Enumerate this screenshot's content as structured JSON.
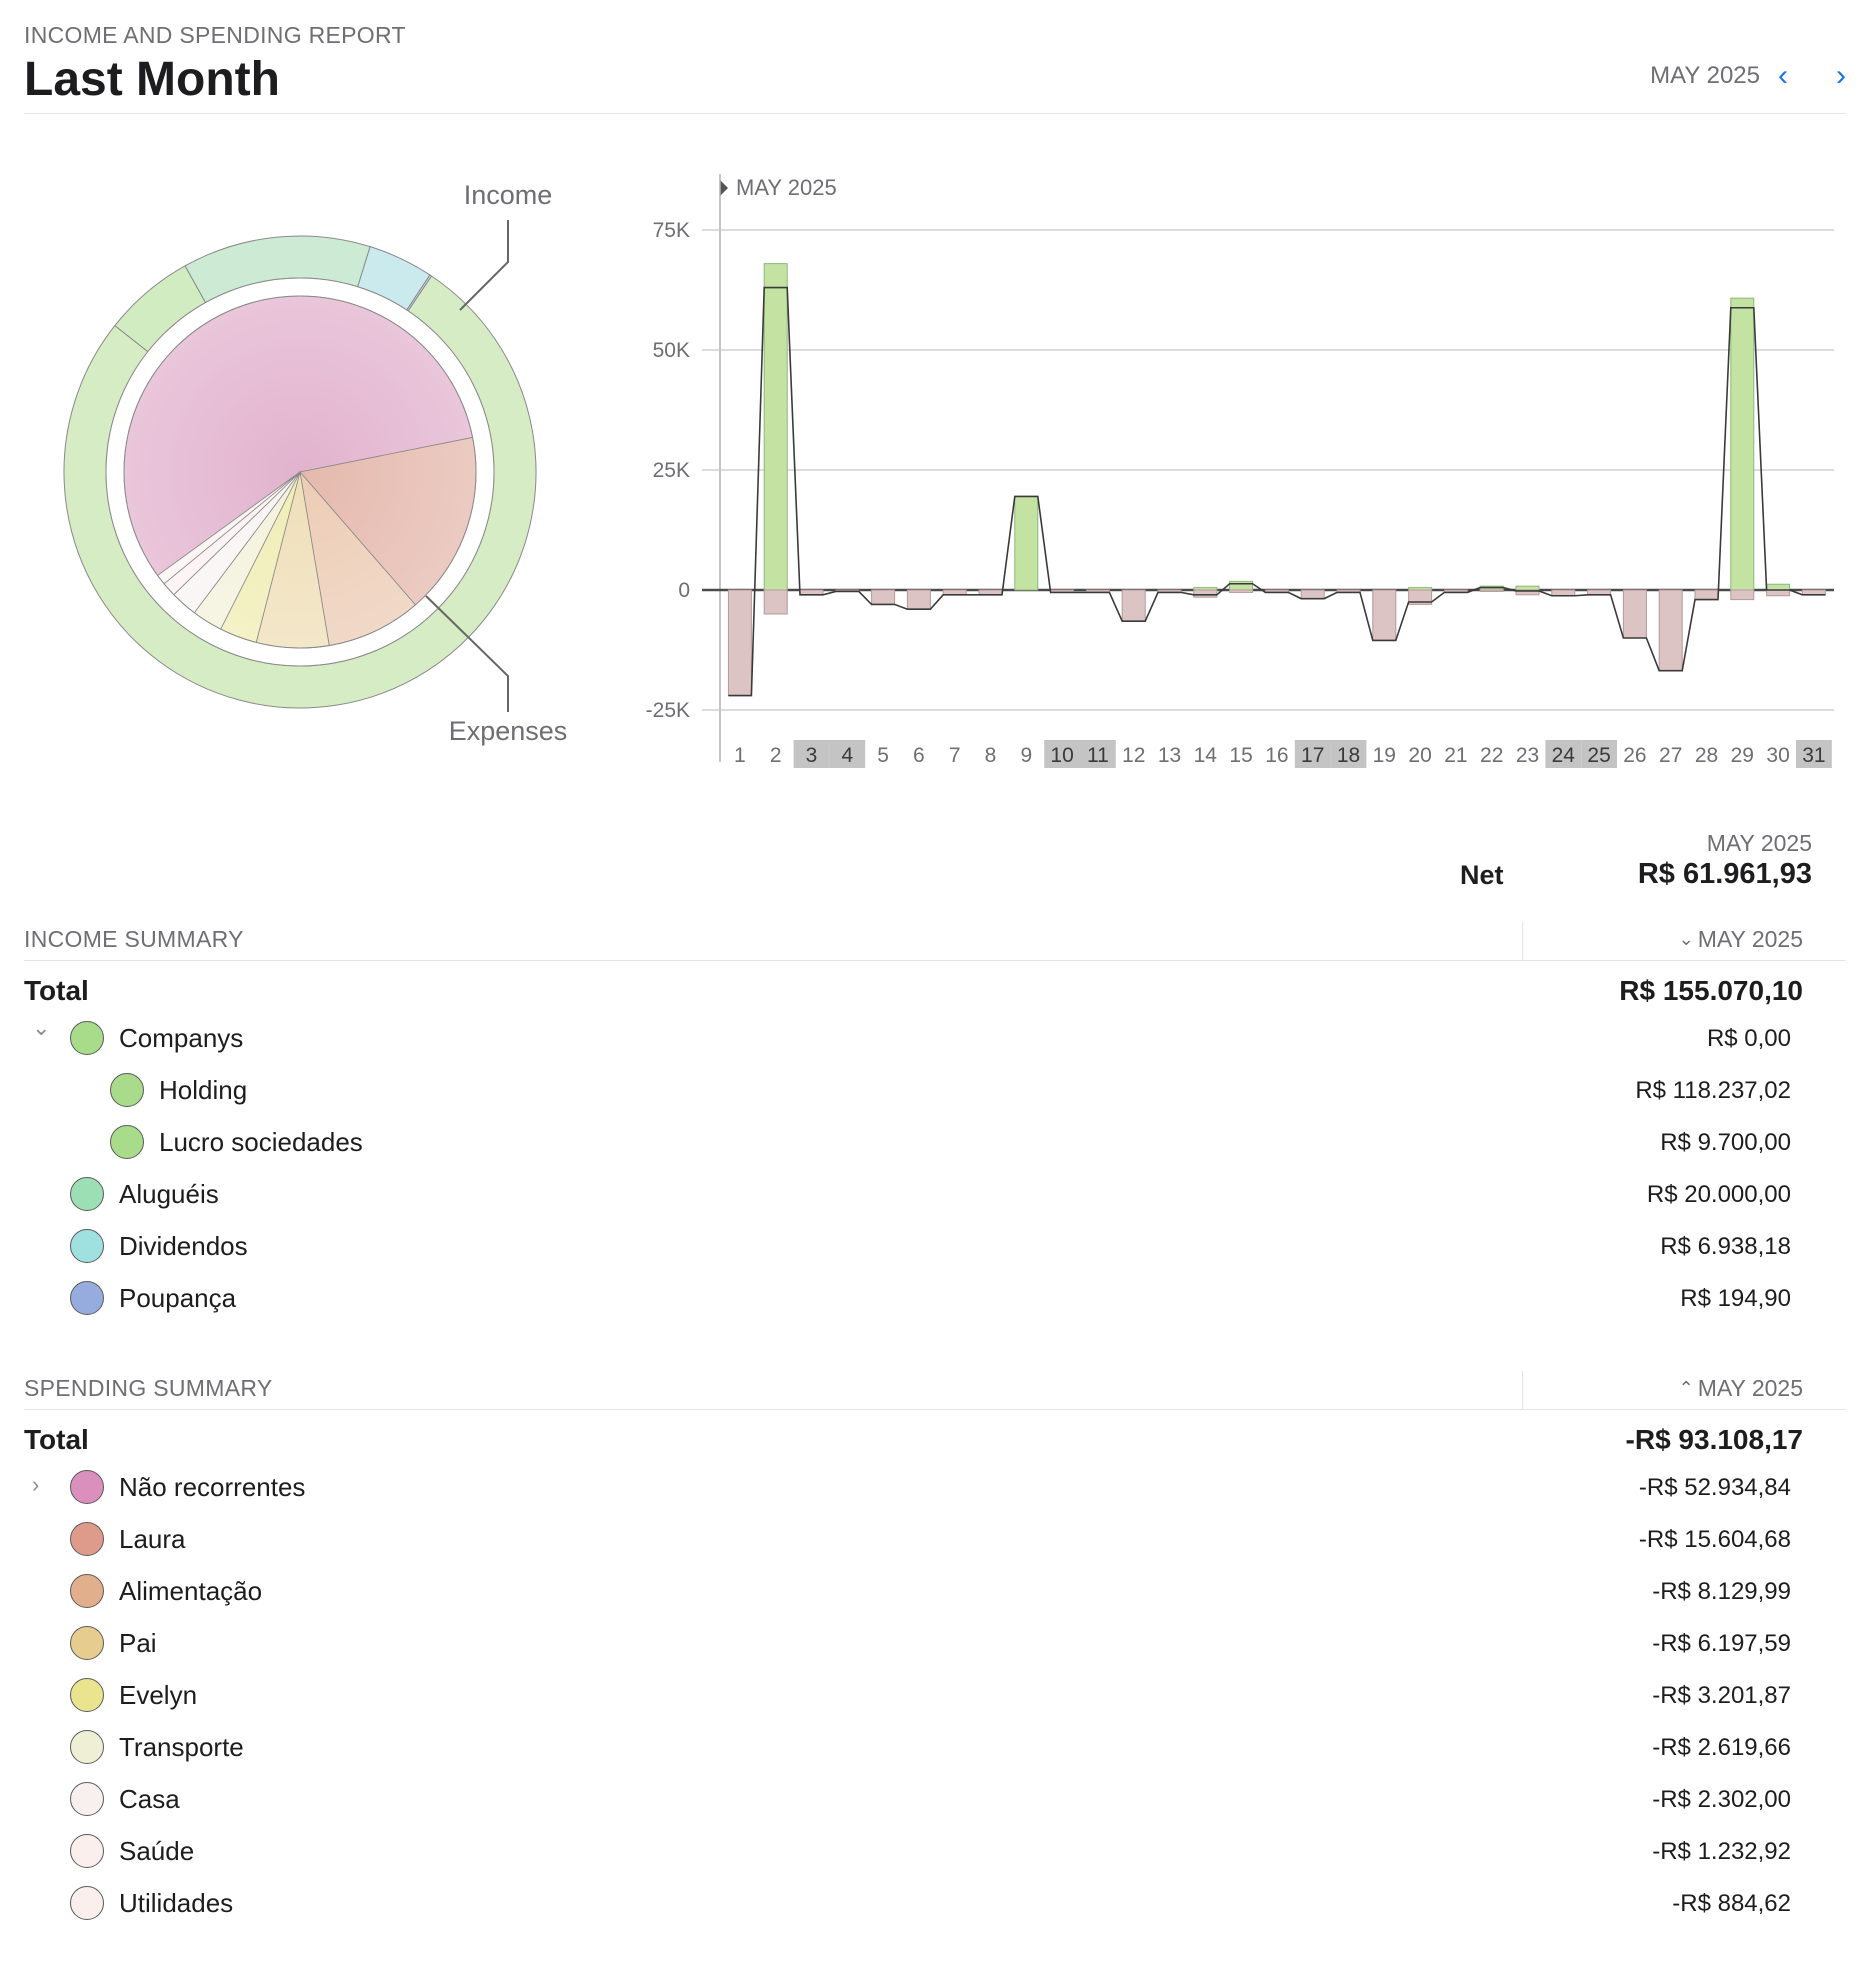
{
  "header": {
    "kicker": "INCOME AND SPENDING REPORT",
    "title": "Last Month",
    "period": "MAY 2025",
    "prev_icon": "chevron-left-icon",
    "next_icon": "chevron-right-icon"
  },
  "colors": {
    "accent": "#1a73e8",
    "income_bar": "#c4e2a1",
    "expense_bar": "#dcc3c4"
  },
  "donut": {
    "income_label": "Income",
    "expenses_label": "Expenses",
    "outer_ring": [
      {
        "name": "Holding",
        "value": 118237.02,
        "color": "#d5ecc4"
      },
      {
        "name": "Lucro sociedades",
        "value": 9700.0,
        "color": "#d2ecc2"
      },
      {
        "name": "Aluguéis",
        "value": 20000.0,
        "color": "#cdebd4"
      },
      {
        "name": "Dividendos",
        "value": 6938.18,
        "color": "#cbeaee"
      },
      {
        "name": "Poupança",
        "value": 194.9,
        "color": "#c9d4ee"
      }
    ],
    "inner_pie": [
      {
        "name": "Não recorrentes",
        "value": 52934.84,
        "color": "#e2b3ce"
      },
      {
        "name": "Laura",
        "value": 15604.68,
        "color": "#e5b9ad"
      },
      {
        "name": "Alimentação",
        "value": 8129.99,
        "color": "#ecccb5"
      },
      {
        "name": "Pai",
        "value": 6197.59,
        "color": "#efdfb8"
      },
      {
        "name": "Evelyn",
        "value": 3201.87,
        "color": "#f0edb4"
      },
      {
        "name": "Transporte",
        "value": 2619.66,
        "color": "#f3f2dc"
      },
      {
        "name": "Casa",
        "value": 2302.0,
        "color": "#f8f4f3"
      },
      {
        "name": "Saúde",
        "value": 1232.92,
        "color": "#fbf2f1"
      },
      {
        "name": "Utilidades",
        "value": 884.62,
        "color": "#fbf3f1"
      }
    ]
  },
  "chart_data": {
    "type": "bar",
    "title": "MAY 2025",
    "xlabel": "",
    "ylabel": "",
    "ylim": [
      -25000,
      75000
    ],
    "y_ticks": [
      "75K",
      "50K",
      "25K",
      "0",
      "-25K"
    ],
    "y_tick_values": [
      75000,
      50000,
      25000,
      0,
      -25000
    ],
    "grid": true,
    "categories": [
      "1",
      "2",
      "3",
      "4",
      "5",
      "6",
      "7",
      "8",
      "9",
      "10",
      "11",
      "12",
      "13",
      "14",
      "15",
      "16",
      "17",
      "18",
      "19",
      "20",
      "21",
      "22",
      "23",
      "24",
      "25",
      "26",
      "27",
      "28",
      "29",
      "30",
      "31"
    ],
    "weekend_days": [
      "3",
      "4",
      "10",
      "11",
      "17",
      "18",
      "24",
      "25",
      "31"
    ],
    "series": [
      {
        "name": "Income",
        "values": [
          0,
          68000,
          0,
          0,
          0,
          0,
          0,
          0,
          19500,
          0,
          0,
          0,
          0,
          500,
          1800,
          0,
          0,
          0,
          0,
          500,
          0,
          800,
          800,
          0,
          0,
          0,
          0,
          0,
          60800,
          1200,
          0
        ]
      },
      {
        "name": "Expenses",
        "values": [
          -22000,
          -5000,
          -1000,
          -300,
          -3000,
          -4000,
          -1000,
          -1000,
          0,
          -500,
          -500,
          -6500,
          -500,
          -1500,
          -500,
          -500,
          -1800,
          -500,
          -10500,
          -3000,
          -500,
          -300,
          -1000,
          -1200,
          -1000,
          -10000,
          -16800,
          -2000,
          -2000,
          -1200,
          -1000
        ]
      }
    ],
    "net_line": [
      -22000,
      63000,
      -1000,
      -300,
      -3000,
      -4000,
      -1000,
      -1000,
      19500,
      -500,
      -500,
      -6500,
      -500,
      -1000,
      1300,
      -500,
      -1800,
      -500,
      -10500,
      -2500,
      -500,
      500,
      -200,
      -1200,
      -1000,
      -10000,
      -16800,
      -2000,
      58800,
      0,
      -1000
    ]
  },
  "net": {
    "period": "MAY 2025",
    "label": "Net",
    "value": "R$ 61.961,93"
  },
  "income_summary": {
    "title": "INCOME SUMMARY",
    "period": "MAY 2025",
    "sort_icon": "chevron-down-icon",
    "total_label": "Total",
    "total_value": "R$ 155.070,10",
    "rows": [
      {
        "label": "Companys",
        "value": "R$ 0,00",
        "color": "#a8dc8a",
        "level": 0,
        "disclosure": "chevron-down-icon"
      },
      {
        "label": "Holding",
        "value": "R$ 118.237,02",
        "color": "#a8dc8a",
        "level": 1
      },
      {
        "label": "Lucro sociedades",
        "value": "R$ 9.700,00",
        "color": "#a8dc8a",
        "level": 1
      },
      {
        "label": "Aluguéis",
        "value": "R$ 20.000,00",
        "color": "#9ddfb4",
        "level": 0
      },
      {
        "label": "Dividendos",
        "value": "R$ 6.938,18",
        "color": "#9fe0e0",
        "level": 0
      },
      {
        "label": "Poupança",
        "value": "R$ 194,90",
        "color": "#96acde",
        "level": 0
      }
    ]
  },
  "spending_summary": {
    "title": "SPENDING SUMMARY",
    "period": "MAY 2025",
    "sort_icon": "chevron-up-icon",
    "total_label": "Total",
    "total_value": "-R$ 93.108,17",
    "rows": [
      {
        "label": "Não recorrentes",
        "value": "-R$ 52.934,84",
        "color": "#da8fbd",
        "disclosure": "chevron-right-icon"
      },
      {
        "label": "Laura",
        "value": "-R$ 15.604,68",
        "color": "#de9b8c"
      },
      {
        "label": "Alimentação",
        "value": "-R$ 8.129,99",
        "color": "#e2af8d"
      },
      {
        "label": "Pai",
        "value": "-R$ 6.197,59",
        "color": "#e6cc8e"
      },
      {
        "label": "Evelyn",
        "value": "-R$ 3.201,87",
        "color": "#e9e48d"
      },
      {
        "label": "Transporte",
        "value": "-R$ 2.619,66",
        "color": "#efefd6"
      },
      {
        "label": "Casa",
        "value": "-R$ 2.302,00",
        "color": "#f8f0ef"
      },
      {
        "label": "Saúde",
        "value": "-R$ 1.232,92",
        "color": "#faefed"
      },
      {
        "label": "Utilidades",
        "value": "-R$ 884,62",
        "color": "#faefed"
      }
    ]
  }
}
